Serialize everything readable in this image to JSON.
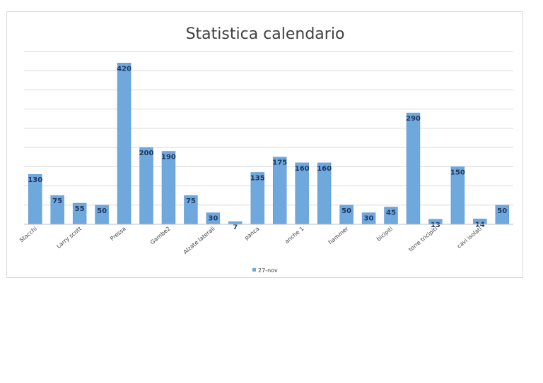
{
  "chart_data": {
    "type": "bar",
    "title": "Statistica calendario",
    "xlabel": "",
    "ylabel": "",
    "categories": [
      "Stacchi",
      "",
      "Larry scott",
      "",
      "Pressa",
      "",
      "Gambe2",
      "",
      "Alzate laterali",
      "",
      "panca",
      "",
      "anche 1",
      "",
      "hammer",
      "",
      "bicipiti",
      "",
      "torre tricipiti",
      "",
      "cavi isolati",
      ""
    ],
    "series": [
      {
        "name": "27-nov",
        "color": "#6fa8dc",
        "values": [
          130,
          75,
          55,
          50,
          420,
          200,
          190,
          75,
          30,
          7,
          135,
          175,
          160,
          160,
          50,
          30,
          45,
          290,
          13,
          150,
          14,
          50
        ]
      }
    ],
    "ylim": [
      0,
      450
    ],
    "grid": true,
    "legend": "bottom"
  }
}
